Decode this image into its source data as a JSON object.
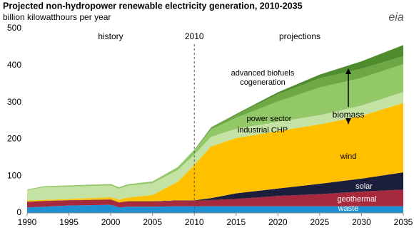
{
  "chart_data": {
    "type": "stacked_area",
    "title": "Projected non-hydropower renewable electricity generation, 2010-2035",
    "subtitle": "billion kilowatthours per year",
    "logo": "eia",
    "x": [
      1990,
      1992,
      1995,
      2000,
      2001,
      2002,
      2005,
      2008,
      2010,
      2012,
      2015,
      2020,
      2025,
      2030,
      2035
    ],
    "series": [
      {
        "name": "waste",
        "color": "#1f8fd3",
        "values": [
          15,
          17,
          20,
          22,
          15,
          17,
          17,
          18,
          18,
          18,
          18,
          18,
          18,
          18,
          18
        ]
      },
      {
        "name": "geothermal",
        "color": "#a6293d",
        "values": [
          15,
          15,
          14,
          14,
          13,
          14,
          14,
          15,
          15,
          17,
          20,
          28,
          33,
          40,
          45
        ]
      },
      {
        "name": "solar",
        "color": "#1c1f3b",
        "values": [
          0.5,
          0.5,
          0.5,
          0.5,
          0.5,
          0.5,
          0.5,
          1,
          1,
          5,
          15,
          20,
          28,
          35,
          47
        ]
      },
      {
        "name": "wind",
        "color": "#ffc000",
        "values": [
          3,
          3,
          3,
          6,
          7,
          10,
          17,
          50,
          96,
          140,
          150,
          156,
          161,
          170,
          188
        ]
      },
      {
        "name": "industrial CHP",
        "color": "#c4e2a3",
        "values": [
          28,
          34,
          34,
          32,
          30,
          32,
          32,
          32,
          28,
          26,
          25,
          25,
          25,
          28,
          30
        ]
      },
      {
        "name": "power sector",
        "color": "#93c868",
        "values": [
          2,
          3,
          3,
          4,
          4,
          4,
          5,
          8,
          12,
          20,
          30,
          55,
          75,
          75,
          75
        ]
      },
      {
        "name": "cogeneration",
        "color": "#6da845",
        "values": [
          0,
          0,
          0,
          0,
          0,
          0,
          0,
          0,
          1,
          5,
          8,
          20,
          25,
          25,
          22
        ]
      },
      {
        "name": "advanced biofuels",
        "color": "#4e8c2e",
        "values": [
          0,
          0,
          0,
          0,
          0,
          0,
          0,
          0,
          0,
          1,
          2,
          5,
          10,
          20,
          30
        ]
      }
    ],
    "annotations": [
      "history",
      "2010",
      "projections",
      "biomass"
    ],
    "vline": 2010,
    "xlim": [
      1990,
      2035
    ],
    "xticks": [
      1990,
      1995,
      2000,
      2005,
      2010,
      2015,
      2020,
      2025,
      2030,
      2035
    ],
    "ylim": [
      0,
      500
    ],
    "yticks": [
      0,
      100,
      200,
      300,
      400,
      500
    ]
  }
}
